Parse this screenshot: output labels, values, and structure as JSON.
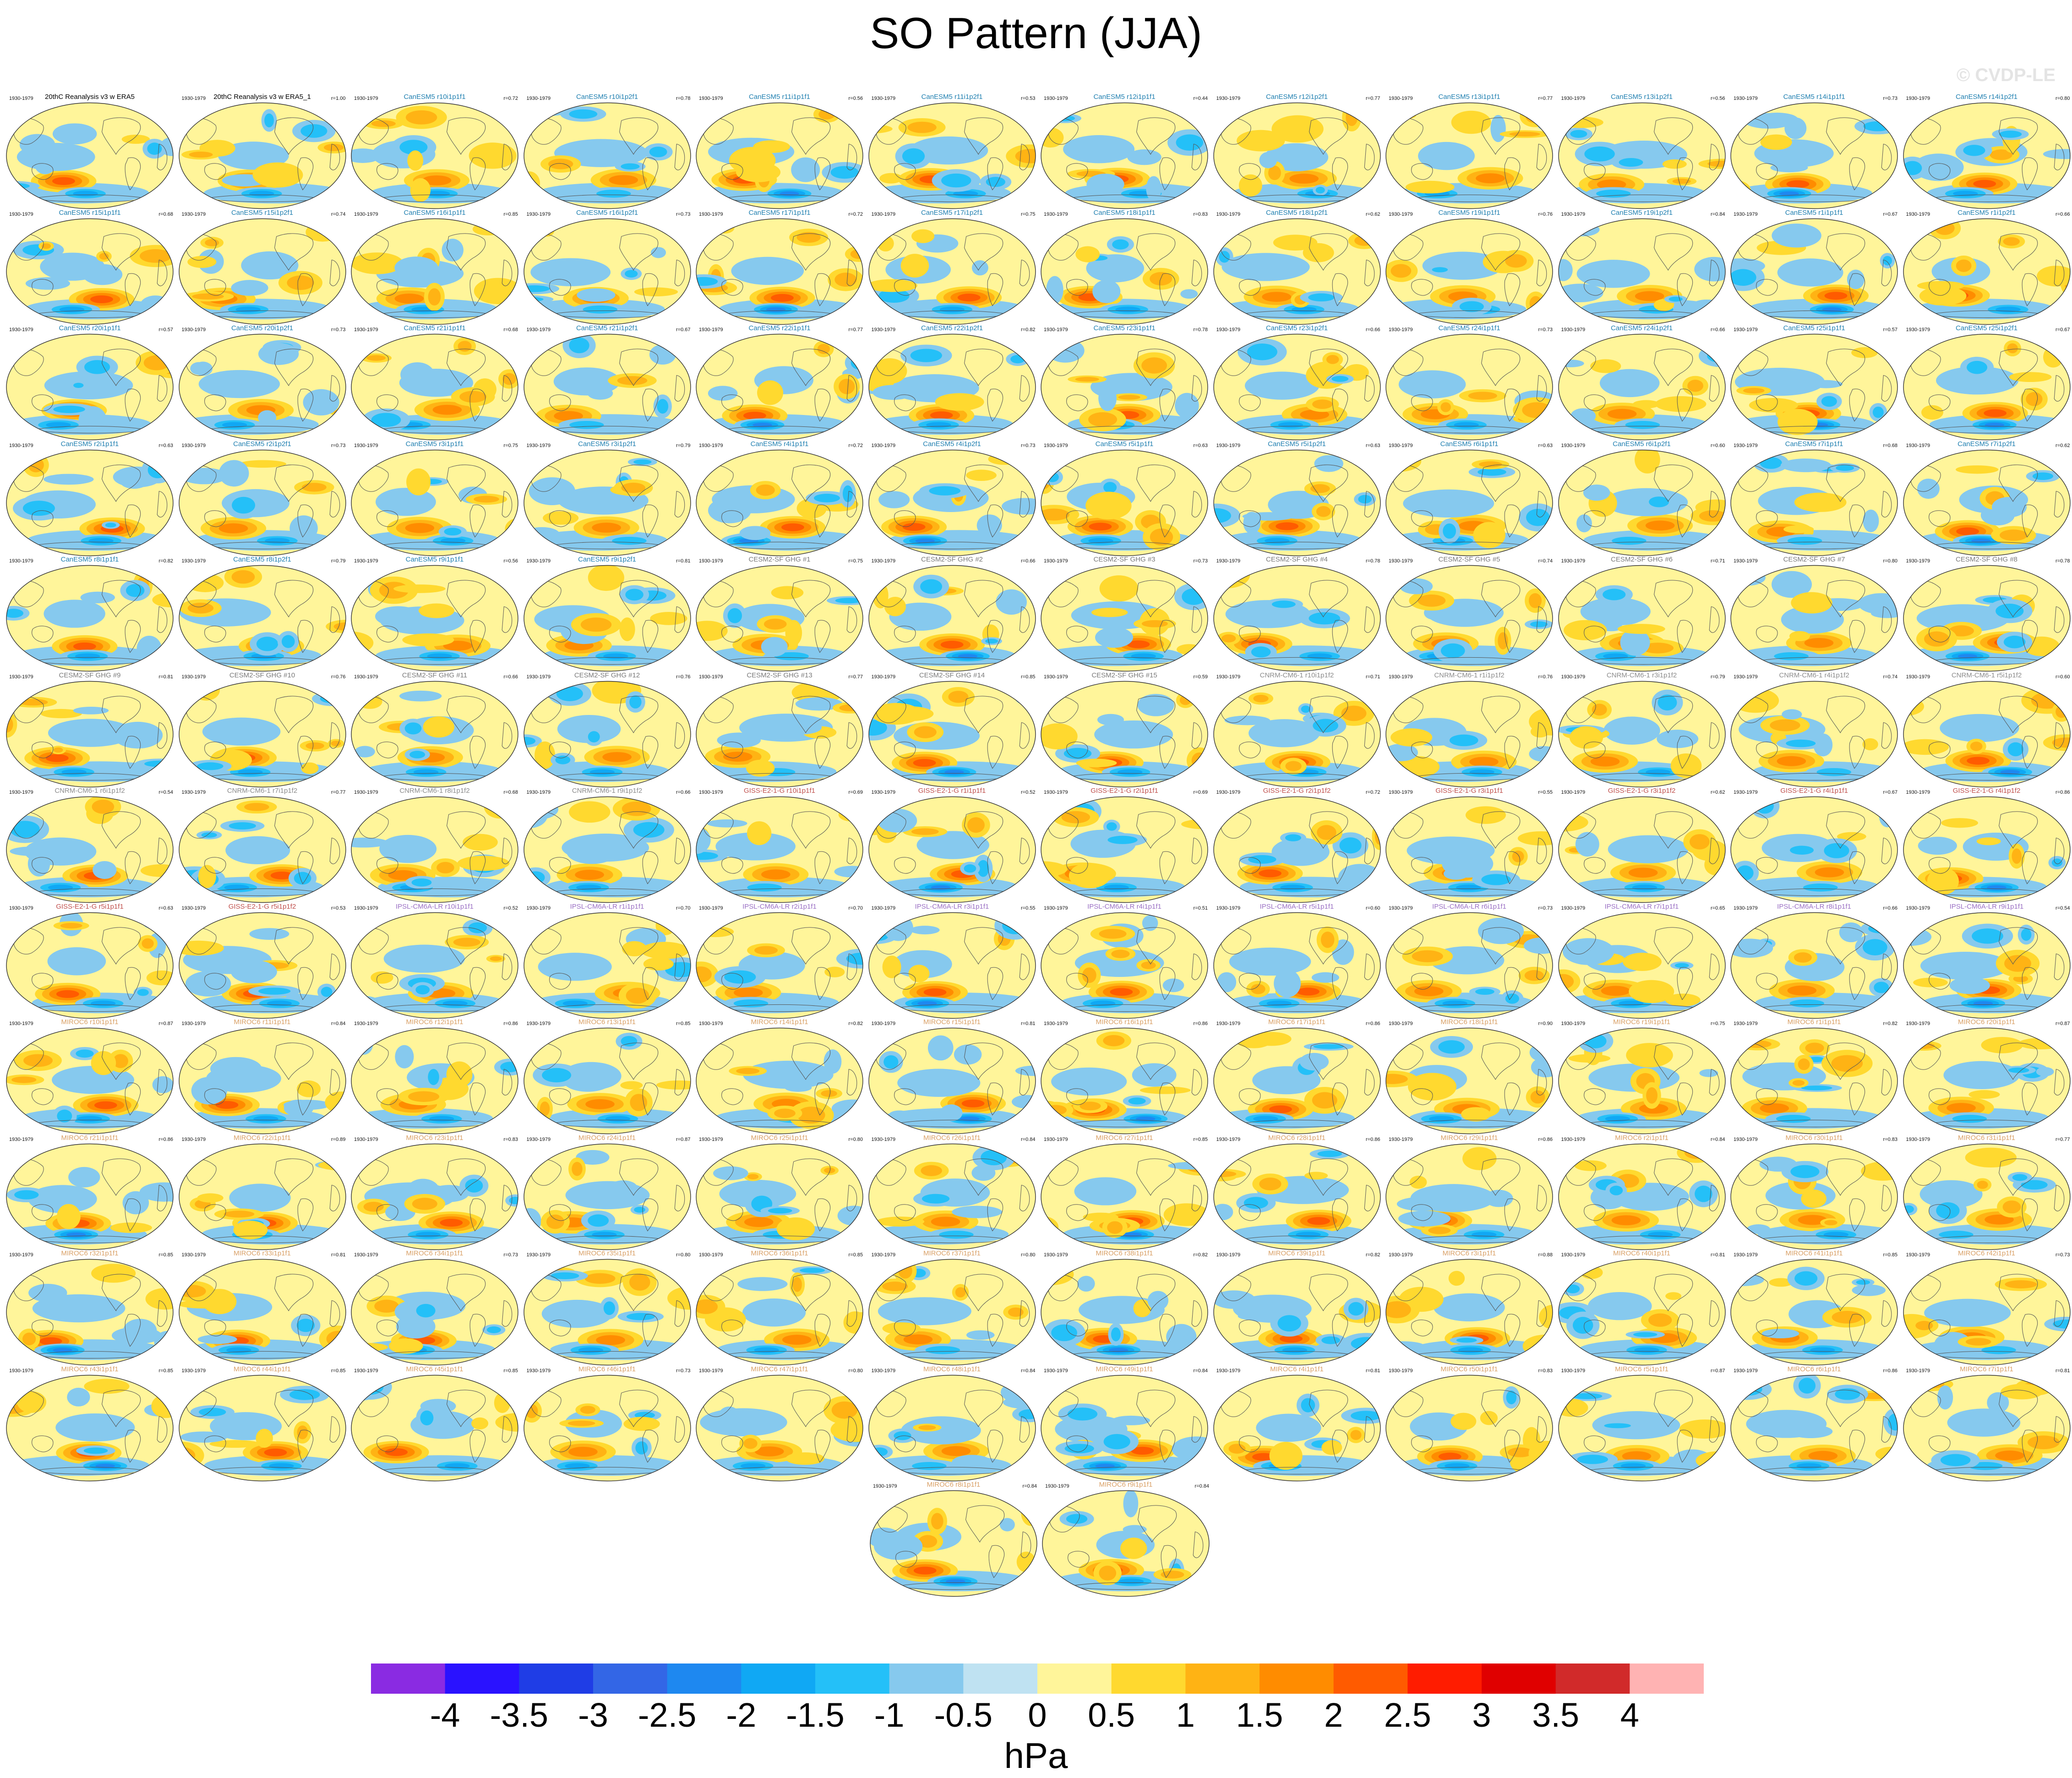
{
  "title": "SO Pattern (JJA)",
  "watermark": "© CVDP-LE",
  "colors": {
    "group_title": {
      "obs": "#000000",
      "canesm": "#1f7fb0",
      "cesm": "#7a7a7a",
      "cnrm": "#8c8c8c",
      "giss": "#c0504d",
      "ipsl": "#9a6fc4",
      "miroc": "#d9a066"
    },
    "land_fill": "#fff59a",
    "coastline": "#555555",
    "globe_border": "#333333"
  },
  "panels": [
    {
      "title": "20thC Reanalysis v3 w ERA5",
      "period": "1930-1979",
      "r": "",
      "group": "obs"
    },
    {
      "title": "20thC Reanalysis v3 w ERA5_1",
      "period": "1930-1979",
      "r": "r=1.00",
      "group": "obs"
    },
    {
      "title": "CanESM5 r10i1p1f1",
      "period": "1930-1979",
      "r": "r=0.72",
      "group": "canesm"
    },
    {
      "title": "CanESM5 r10i1p2f1",
      "period": "1930-1979",
      "r": "r=0.78",
      "group": "canesm"
    },
    {
      "title": "CanESM5 r11i1p1f1",
      "period": "1930-1979",
      "r": "r=0.56",
      "group": "canesm"
    },
    {
      "title": "CanESM5 r11i1p2f1",
      "period": "1930-1979",
      "r": "r=0.53",
      "group": "canesm"
    },
    {
      "title": "CanESM5 r12i1p1f1",
      "period": "1930-1979",
      "r": "r=0.44",
      "group": "canesm"
    },
    {
      "title": "CanESM5 r12i1p2f1",
      "period": "1930-1979",
      "r": "r=0.77",
      "group": "canesm"
    },
    {
      "title": "CanESM5 r13i1p1f1",
      "period": "1930-1979",
      "r": "r=0.77",
      "group": "canesm"
    },
    {
      "title": "CanESM5 r13i1p2f1",
      "period": "1930-1979",
      "r": "r=0.56",
      "group": "canesm"
    },
    {
      "title": "CanESM5 r14i1p1f1",
      "period": "1930-1979",
      "r": "r=0.73",
      "group": "canesm"
    },
    {
      "title": "CanESM5 r14i1p2f1",
      "period": "1930-1979",
      "r": "r=0.80",
      "group": "canesm"
    },
    {
      "title": "CanESM5 r15i1p1f1",
      "period": "1930-1979",
      "r": "r=0.68",
      "group": "canesm"
    },
    {
      "title": "CanESM5 r15i1p2f1",
      "period": "1930-1979",
      "r": "r=0.74",
      "group": "canesm"
    },
    {
      "title": "CanESM5 r16i1p1f1",
      "period": "1930-1979",
      "r": "r=0.85",
      "group": "canesm"
    },
    {
      "title": "CanESM5 r16i1p2f1",
      "period": "1930-1979",
      "r": "r=0.73",
      "group": "canesm"
    },
    {
      "title": "CanESM5 r17i1p1f1",
      "period": "1930-1979",
      "r": "r=0.72",
      "group": "canesm"
    },
    {
      "title": "CanESM5 r17i1p2f1",
      "period": "1930-1979",
      "r": "r=0.75",
      "group": "canesm"
    },
    {
      "title": "CanESM5 r18i1p1f1",
      "period": "1930-1979",
      "r": "r=0.83",
      "group": "canesm"
    },
    {
      "title": "CanESM5 r18i1p2f1",
      "period": "1930-1979",
      "r": "r=0.62",
      "group": "canesm"
    },
    {
      "title": "CanESM5 r19i1p1f1",
      "period": "1930-1979",
      "r": "r=0.76",
      "group": "canesm"
    },
    {
      "title": "CanESM5 r19i1p2f1",
      "period": "1930-1979",
      "r": "r=0.84",
      "group": "canesm"
    },
    {
      "title": "CanESM5 r1i1p1f1",
      "period": "1930-1979",
      "r": "r=0.67",
      "group": "canesm"
    },
    {
      "title": "CanESM5 r1i1p2f1",
      "period": "1930-1979",
      "r": "r=0.66",
      "group": "canesm"
    },
    {
      "title": "CanESM5 r20i1p1f1",
      "period": "1930-1979",
      "r": "r=0.57",
      "group": "canesm"
    },
    {
      "title": "CanESM5 r20i1p2f1",
      "period": "1930-1979",
      "r": "r=0.73",
      "group": "canesm"
    },
    {
      "title": "CanESM5 r21i1p1f1",
      "period": "1930-1979",
      "r": "r=0.68",
      "group": "canesm"
    },
    {
      "title": "CanESM5 r21i1p2f1",
      "period": "1930-1979",
      "r": "r=0.67",
      "group": "canesm"
    },
    {
      "title": "CanESM5 r22i1p1f1",
      "period": "1930-1979",
      "r": "r=0.77",
      "group": "canesm"
    },
    {
      "title": "CanESM5 r22i1p2f1",
      "period": "1930-1979",
      "r": "r=0.82",
      "group": "canesm"
    },
    {
      "title": "CanESM5 r23i1p1f1",
      "period": "1930-1979",
      "r": "r=0.78",
      "group": "canesm"
    },
    {
      "title": "CanESM5 r23i1p2f1",
      "period": "1930-1979",
      "r": "r=0.66",
      "group": "canesm"
    },
    {
      "title": "CanESM5 r24i1p1f1",
      "period": "1930-1979",
      "r": "r=0.73",
      "group": "canesm"
    },
    {
      "title": "CanESM5 r24i1p2f1",
      "period": "1930-1979",
      "r": "r=0.66",
      "group": "canesm"
    },
    {
      "title": "CanESM5 r25i1p1f1",
      "period": "1930-1979",
      "r": "r=0.57",
      "group": "canesm"
    },
    {
      "title": "CanESM5 r25i1p2f1",
      "period": "1930-1979",
      "r": "r=0.67",
      "group": "canesm"
    },
    {
      "title": "CanESM5 r2i1p1f1",
      "period": "1930-1979",
      "r": "r=0.63",
      "group": "canesm"
    },
    {
      "title": "CanESM5 r2i1p2f1",
      "period": "1930-1979",
      "r": "r=0.73",
      "group": "canesm"
    },
    {
      "title": "CanESM5 r3i1p1f1",
      "period": "1930-1979",
      "r": "r=0.75",
      "group": "canesm"
    },
    {
      "title": "CanESM5 r3i1p2f1",
      "period": "1930-1979",
      "r": "r=0.79",
      "group": "canesm"
    },
    {
      "title": "CanESM5 r4i1p1f1",
      "period": "1930-1979",
      "r": "r=0.72",
      "group": "canesm"
    },
    {
      "title": "CanESM5 r4i1p2f1",
      "period": "1930-1979",
      "r": "r=0.73",
      "group": "canesm"
    },
    {
      "title": "CanESM5 r5i1p1f1",
      "period": "1930-1979",
      "r": "r=0.63",
      "group": "canesm"
    },
    {
      "title": "CanESM5 r5i1p2f1",
      "period": "1930-1979",
      "r": "r=0.63",
      "group": "canesm"
    },
    {
      "title": "CanESM5 r6i1p1f1",
      "period": "1930-1979",
      "r": "r=0.63",
      "group": "canesm"
    },
    {
      "title": "CanESM5 r6i1p2f1",
      "period": "1930-1979",
      "r": "r=0.60",
      "group": "canesm"
    },
    {
      "title": "CanESM5 r7i1p1f1",
      "period": "1930-1979",
      "r": "r=0.68",
      "group": "canesm"
    },
    {
      "title": "CanESM5 r7i1p2f1",
      "period": "1930-1979",
      "r": "r=0.62",
      "group": "canesm"
    },
    {
      "title": "CanESM5 r8i1p1f1",
      "period": "1930-1979",
      "r": "r=0.82",
      "group": "canesm"
    },
    {
      "title": "CanESM5 r8i1p2f1",
      "period": "1930-1979",
      "r": "r=0.79",
      "group": "canesm"
    },
    {
      "title": "CanESM5 r9i1p1f1",
      "period": "1930-1979",
      "r": "r=0.56",
      "group": "canesm"
    },
    {
      "title": "CanESM5 r9i1p2f1",
      "period": "1930-1979",
      "r": "r=0.81",
      "group": "canesm"
    },
    {
      "title": "CESM2-SF GHG #1",
      "period": "1930-1979",
      "r": "r=0.75",
      "group": "cesm"
    },
    {
      "title": "CESM2-SF GHG #2",
      "period": "1930-1979",
      "r": "r=0.66",
      "group": "cesm"
    },
    {
      "title": "CESM2-SF GHG #3",
      "period": "1930-1979",
      "r": "r=0.73",
      "group": "cesm"
    },
    {
      "title": "CESM2-SF GHG #4",
      "period": "1930-1979",
      "r": "r=0.78",
      "group": "cesm"
    },
    {
      "title": "CESM2-SF GHG #5",
      "period": "1930-1979",
      "r": "r=0.74",
      "group": "cesm"
    },
    {
      "title": "CESM2-SF GHG #6",
      "period": "1930-1979",
      "r": "r=0.71",
      "group": "cesm"
    },
    {
      "title": "CESM2-SF GHG #7",
      "period": "1930-1979",
      "r": "r=0.80",
      "group": "cesm"
    },
    {
      "title": "CESM2-SF GHG #8",
      "period": "1930-1979",
      "r": "r=0.78",
      "group": "cesm"
    },
    {
      "title": "CESM2-SF GHG #9",
      "period": "1930-1979",
      "r": "r=0.81",
      "group": "cesm"
    },
    {
      "title": "CESM2-SF GHG #10",
      "period": "1930-1979",
      "r": "r=0.76",
      "group": "cesm"
    },
    {
      "title": "CESM2-SF GHG #11",
      "period": "1930-1979",
      "r": "r=0.66",
      "group": "cesm"
    },
    {
      "title": "CESM2-SF GHG #12",
      "period": "1930-1979",
      "r": "r=0.76",
      "group": "cesm"
    },
    {
      "title": "CESM2-SF GHG #13",
      "period": "1930-1979",
      "r": "r=0.77",
      "group": "cesm"
    },
    {
      "title": "CESM2-SF GHG #14",
      "period": "1930-1979",
      "r": "r=0.85",
      "group": "cesm"
    },
    {
      "title": "CESM2-SF GHG #15",
      "period": "1930-1979",
      "r": "r=0.59",
      "group": "cesm"
    },
    {
      "title": "CNRM-CM6-1 r10i1p1f2",
      "period": "1930-1979",
      "r": "r=0.71",
      "group": "cnrm"
    },
    {
      "title": "CNRM-CM6-1 r1i1p1f2",
      "period": "1930-1979",
      "r": "r=0.76",
      "group": "cnrm"
    },
    {
      "title": "CNRM-CM6-1 r3i1p1f2",
      "period": "1930-1979",
      "r": "r=0.79",
      "group": "cnrm"
    },
    {
      "title": "CNRM-CM6-1 r4i1p1f2",
      "period": "1930-1979",
      "r": "r=0.74",
      "group": "cnrm"
    },
    {
      "title": "CNRM-CM6-1 r5i1p1f2",
      "period": "1930-1979",
      "r": "r=0.60",
      "group": "cnrm"
    },
    {
      "title": "CNRM-CM6-1 r6i1p1f2",
      "period": "1930-1979",
      "r": "r=0.54",
      "group": "cnrm"
    },
    {
      "title": "CNRM-CM6-1 r7i1p1f2",
      "period": "1930-1979",
      "r": "r=0.77",
      "group": "cnrm"
    },
    {
      "title": "CNRM-CM6-1 r8i1p1f2",
      "period": "1930-1979",
      "r": "r=0.68",
      "group": "cnrm"
    },
    {
      "title": "CNRM-CM6-1 r9i1p1f2",
      "period": "1930-1979",
      "r": "r=0.66",
      "group": "cnrm"
    },
    {
      "title": "GISS-E2-1-G r10i1p1f1",
      "period": "1930-1979",
      "r": "r=0.69",
      "group": "giss"
    },
    {
      "title": "GISS-E2-1-G r1i1p1f1",
      "period": "1930-1979",
      "r": "r=0.52",
      "group": "giss"
    },
    {
      "title": "GISS-E2-1-G r2i1p1f1",
      "period": "1930-1979",
      "r": "r=0.69",
      "group": "giss"
    },
    {
      "title": "GISS-E2-1-G r2i1p1f2",
      "period": "1930-1979",
      "r": "r=0.72",
      "group": "giss"
    },
    {
      "title": "GISS-E2-1-G r3i1p1f1",
      "period": "1930-1979",
      "r": "r=0.55",
      "group": "giss"
    },
    {
      "title": "GISS-E2-1-G r3i1p1f2",
      "period": "1930-1979",
      "r": "r=0.62",
      "group": "giss"
    },
    {
      "title": "GISS-E2-1-G r4i1p1f1",
      "period": "1930-1979",
      "r": "r=0.67",
      "group": "giss"
    },
    {
      "title": "GISS-E2-1-G r4i1p1f2",
      "period": "1930-1979",
      "r": "r=0.86",
      "group": "giss"
    },
    {
      "title": "GISS-E2-1-G r5i1p1f1",
      "period": "1930-1979",
      "r": "r=0.63",
      "group": "giss"
    },
    {
      "title": "GISS-E2-1-G r5i1p1f2",
      "period": "1930-1979",
      "r": "r=0.53",
      "group": "giss"
    },
    {
      "title": "IPSL-CM6A-LR r10i1p1f1",
      "period": "1930-1979",
      "r": "r=0.52",
      "group": "ipsl"
    },
    {
      "title": "IPSL-CM6A-LR r1i1p1f1",
      "period": "1930-1979",
      "r": "r=0.70",
      "group": "ipsl"
    },
    {
      "title": "IPSL-CM6A-LR r2i1p1f1",
      "period": "1930-1979",
      "r": "r=0.70",
      "group": "ipsl"
    },
    {
      "title": "IPSL-CM6A-LR r3i1p1f1",
      "period": "1930-1979",
      "r": "r=0.55",
      "group": "ipsl"
    },
    {
      "title": "IPSL-CM6A-LR r4i1p1f1",
      "period": "1930-1979",
      "r": "r=0.51",
      "group": "ipsl"
    },
    {
      "title": "IPSL-CM6A-LR r5i1p1f1",
      "period": "1930-1979",
      "r": "r=0.60",
      "group": "ipsl"
    },
    {
      "title": "IPSL-CM6A-LR r6i1p1f1",
      "period": "1930-1979",
      "r": "r=0.73",
      "group": "ipsl"
    },
    {
      "title": "IPSL-CM6A-LR r7i1p1f1",
      "period": "1930-1979",
      "r": "r=0.65",
      "group": "ipsl"
    },
    {
      "title": "IPSL-CM6A-LR r8i1p1f1",
      "period": "1930-1979",
      "r": "r=0.66",
      "group": "ipsl"
    },
    {
      "title": "IPSL-CM6A-LR r9i1p1f1",
      "period": "1930-1979",
      "r": "r=0.54",
      "group": "ipsl"
    },
    {
      "title": "MIROC6 r10i1p1f1",
      "period": "1930-1979",
      "r": "r=0.87",
      "group": "miroc"
    },
    {
      "title": "MIROC6 r11i1p1f1",
      "period": "1930-1979",
      "r": "r=0.84",
      "group": "miroc"
    },
    {
      "title": "MIROC6 r12i1p1f1",
      "period": "1930-1979",
      "r": "r=0.86",
      "group": "miroc"
    },
    {
      "title": "MIROC6 r13i1p1f1",
      "period": "1930-1979",
      "r": "r=0.85",
      "group": "miroc"
    },
    {
      "title": "MIROC6 r14i1p1f1",
      "period": "1930-1979",
      "r": "r=0.82",
      "group": "miroc"
    },
    {
      "title": "MIROC6 r15i1p1f1",
      "period": "1930-1979",
      "r": "r=0.81",
      "group": "miroc"
    },
    {
      "title": "MIROC6 r16i1p1f1",
      "period": "1930-1979",
      "r": "r=0.86",
      "group": "miroc"
    },
    {
      "title": "MIROC6 r17i1p1f1",
      "period": "1930-1979",
      "r": "r=0.86",
      "group": "miroc"
    },
    {
      "title": "MIROC6 r18i1p1f1",
      "period": "1930-1979",
      "r": "r=0.90",
      "group": "miroc"
    },
    {
      "title": "MIROC6 r19i1p1f1",
      "period": "1930-1979",
      "r": "r=0.75",
      "group": "miroc"
    },
    {
      "title": "MIROC6 r1i1p1f1",
      "period": "1930-1979",
      "r": "r=0.82",
      "group": "miroc"
    },
    {
      "title": "MIROC6 r20i1p1f1",
      "period": "1930-1979",
      "r": "r=0.87",
      "group": "miroc"
    },
    {
      "title": "MIROC6 r21i1p1f1",
      "period": "1930-1979",
      "r": "r=0.86",
      "group": "miroc"
    },
    {
      "title": "MIROC6 r22i1p1f1",
      "period": "1930-1979",
      "r": "r=0.89",
      "group": "miroc"
    },
    {
      "title": "MIROC6 r23i1p1f1",
      "period": "1930-1979",
      "r": "r=0.83",
      "group": "miroc"
    },
    {
      "title": "MIROC6 r24i1p1f1",
      "period": "1930-1979",
      "r": "r=0.87",
      "group": "miroc"
    },
    {
      "title": "MIROC6 r25i1p1f1",
      "period": "1930-1979",
      "r": "r=0.80",
      "group": "miroc"
    },
    {
      "title": "MIROC6 r26i1p1f1",
      "period": "1930-1979",
      "r": "r=0.84",
      "group": "miroc"
    },
    {
      "title": "MIROC6 r27i1p1f1",
      "period": "1930-1979",
      "r": "r=0.85",
      "group": "miroc"
    },
    {
      "title": "MIROC6 r28i1p1f1",
      "period": "1930-1979",
      "r": "r=0.86",
      "group": "miroc"
    },
    {
      "title": "MIROC6 r29i1p1f1",
      "period": "1930-1979",
      "r": "r=0.86",
      "group": "miroc"
    },
    {
      "title": "MIROC6 r2i1p1f1",
      "period": "1930-1979",
      "r": "r=0.84",
      "group": "miroc"
    },
    {
      "title": "MIROC6 r30i1p1f1",
      "period": "1930-1979",
      "r": "r=0.83",
      "group": "miroc"
    },
    {
      "title": "MIROC6 r31i1p1f1",
      "period": "1930-1979",
      "r": "r=0.77",
      "group": "miroc"
    },
    {
      "title": "MIROC6 r32i1p1f1",
      "period": "1930-1979",
      "r": "r=0.85",
      "group": "miroc"
    },
    {
      "title": "MIROC6 r33i1p1f1",
      "period": "1930-1979",
      "r": "r=0.81",
      "group": "miroc"
    },
    {
      "title": "MIROC6 r34i1p1f1",
      "period": "1930-1979",
      "r": "r=0.73",
      "group": "miroc"
    },
    {
      "title": "MIROC6 r35i1p1f1",
      "period": "1930-1979",
      "r": "r=0.80",
      "group": "miroc"
    },
    {
      "title": "MIROC6 r36i1p1f1",
      "period": "1930-1979",
      "r": "r=0.85",
      "group": "miroc"
    },
    {
      "title": "MIROC6 r37i1p1f1",
      "period": "1930-1979",
      "r": "r=0.80",
      "group": "miroc"
    },
    {
      "title": "MIROC6 r38i1p1f1",
      "period": "1930-1979",
      "r": "r=0.82",
      "group": "miroc"
    },
    {
      "title": "MIROC6 r39i1p1f1",
      "period": "1930-1979",
      "r": "r=0.82",
      "group": "miroc"
    },
    {
      "title": "MIROC6 r3i1p1f1",
      "period": "1930-1979",
      "r": "r=0.88",
      "group": "miroc"
    },
    {
      "title": "MIROC6 r40i1p1f1",
      "period": "1930-1979",
      "r": "r=0.81",
      "group": "miroc"
    },
    {
      "title": "MIROC6 r41i1p1f1",
      "period": "1930-1979",
      "r": "r=0.85",
      "group": "miroc"
    },
    {
      "title": "MIROC6 r42i1p1f1",
      "period": "1930-1979",
      "r": "r=0.73",
      "group": "miroc"
    },
    {
      "title": "MIROC6 r43i1p1f1",
      "period": "1930-1979",
      "r": "r=0.85",
      "group": "miroc"
    },
    {
      "title": "MIROC6 r44i1p1f1",
      "period": "1930-1979",
      "r": "r=0.85",
      "group": "miroc"
    },
    {
      "title": "MIROC6 r45i1p1f1",
      "period": "1930-1979",
      "r": "r=0.85",
      "group": "miroc"
    },
    {
      "title": "MIROC6 r46i1p1f1",
      "period": "1930-1979",
      "r": "r=0.73",
      "group": "miroc"
    },
    {
      "title": "MIROC6 r47i1p1f1",
      "period": "1930-1979",
      "r": "r=0.80",
      "group": "miroc"
    },
    {
      "title": "MIROC6 r48i1p1f1",
      "period": "1930-1979",
      "r": "r=0.84",
      "group": "miroc"
    },
    {
      "title": "MIROC6 r49i1p1f1",
      "period": "1930-1979",
      "r": "r=0.84",
      "group": "miroc"
    },
    {
      "title": "MIROC6 r4i1p1f1",
      "period": "1930-1979",
      "r": "r=0.81",
      "group": "miroc"
    },
    {
      "title": "MIROC6 r50i1p1f1",
      "period": "1930-1979",
      "r": "r=0.83",
      "group": "miroc"
    },
    {
      "title": "MIROC6 r5i1p1f1",
      "period": "1930-1979",
      "r": "r=0.87",
      "group": "miroc"
    },
    {
      "title": "MIROC6 r6i1p1f1",
      "period": "1930-1979",
      "r": "r=0.86",
      "group": "miroc"
    },
    {
      "title": "MIROC6 r7i1p1f1",
      "period": "1930-1979",
      "r": "r=0.81",
      "group": "miroc"
    },
    {
      "title": "MIROC6 r8i1p1f1",
      "period": "1930-1979",
      "r": "r=0.84",
      "group": "miroc"
    },
    {
      "title": "MIROC6 r9i1p1f1",
      "period": "1930-1979",
      "r": "r=0.84",
      "group": "miroc"
    }
  ],
  "chart_data": {
    "type": "heatmap",
    "title": "SO Pattern (JJA)",
    "colorbar": {
      "units": "hPa",
      "levels": [
        -4,
        -3.5,
        -3,
        -2.5,
        -2,
        -1.5,
        -1,
        -0.5,
        0,
        0.5,
        1,
        1.5,
        2,
        2.5,
        3,
        3.5,
        4
      ],
      "tick_labels": [
        "-4",
        "-3.5",
        "-3",
        "-2.5",
        "-2",
        "-1.5",
        "-1",
        "-0.5",
        "0",
        "0.5",
        "1",
        "1.5",
        "2",
        "2.5",
        "3",
        "3.5",
        "4"
      ],
      "colors": [
        "#8a2be2",
        "#2a12ff",
        "#1f3de6",
        "#3366e6",
        "#1e88f0",
        "#10a8f4",
        "#24c0f8",
        "#86c9ee",
        "#bfe2f2",
        "#fff59a",
        "#ffd92f",
        "#ffb314",
        "#ff8c00",
        "#ff5b00",
        "#ff1c00",
        "#e00000",
        "#d12a2a",
        "#ffb3b3"
      ]
    }
  }
}
